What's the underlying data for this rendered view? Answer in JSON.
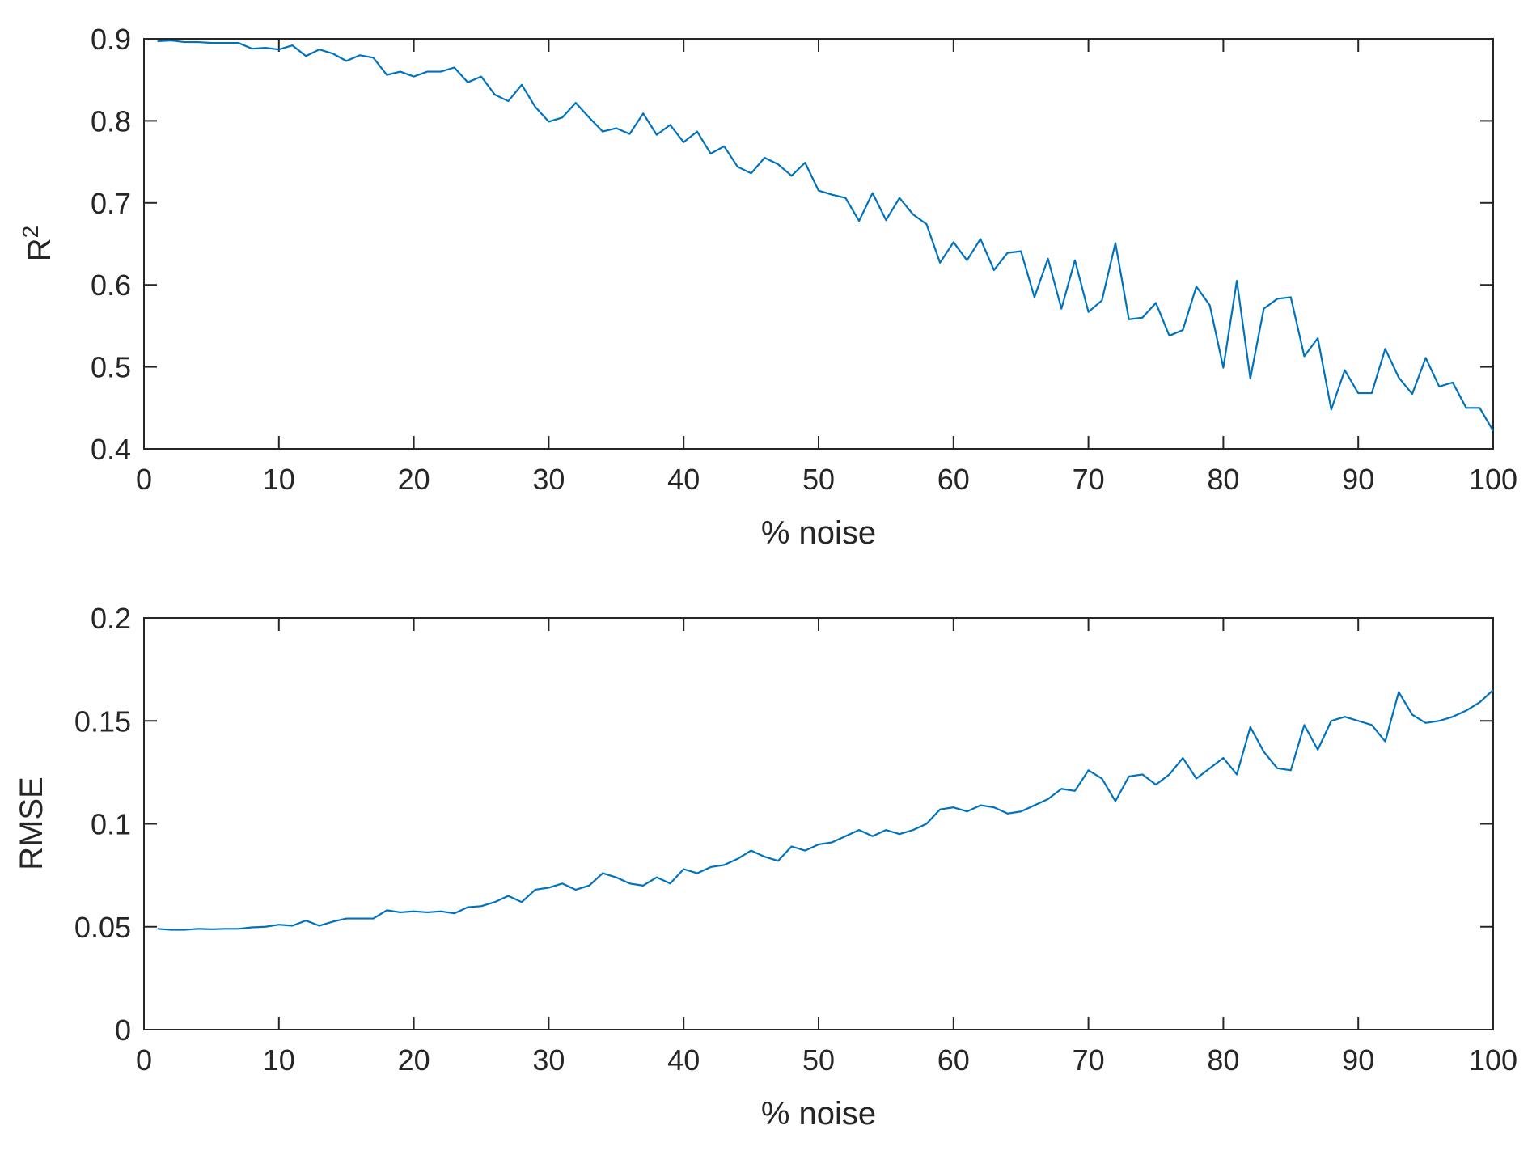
{
  "figure": {
    "background": "#ffffff",
    "line_color": "#0072bd",
    "axis_color": "#262626"
  },
  "chart_data": [
    {
      "type": "line",
      "xlabel": "% noise",
      "ylabel": "R",
      "ylabel_superscript": "2",
      "xlim": [
        0,
        100
      ],
      "ylim": [
        0.4,
        0.9
      ],
      "xticks": [
        0,
        10,
        20,
        30,
        40,
        50,
        60,
        70,
        80,
        90,
        100
      ],
      "yticks": [
        0.4,
        0.5,
        0.6,
        0.7,
        0.8,
        0.9
      ],
      "xtick_labels": [
        "0",
        "10",
        "20",
        "30",
        "40",
        "50",
        "60",
        "70",
        "80",
        "90",
        "100"
      ],
      "ytick_labels": [
        "0.4",
        "0.5",
        "0.6",
        "0.7",
        "0.8",
        "0.9"
      ],
      "grid": false,
      "series": [
        {
          "color": "#0072bd",
          "x": [
            1,
            2,
            3,
            4,
            5,
            6,
            7,
            8,
            9,
            10,
            11,
            12,
            13,
            14,
            15,
            16,
            17,
            18,
            19,
            20,
            21,
            22,
            23,
            24,
            25,
            26,
            27,
            28,
            29,
            30,
            31,
            32,
            33,
            34,
            35,
            36,
            37,
            38,
            39,
            40,
            41,
            42,
            43,
            44,
            45,
            46,
            47,
            48,
            49,
            50,
            51,
            52,
            53,
            54,
            55,
            56,
            57,
            58,
            59,
            60,
            61,
            62,
            63,
            64,
            65,
            66,
            67,
            68,
            69,
            70,
            71,
            72,
            73,
            74,
            75,
            76,
            77,
            78,
            79,
            80,
            81,
            82,
            83,
            84,
            85,
            86,
            87,
            88,
            89,
            90,
            91,
            92,
            93,
            94,
            95,
            96,
            97,
            98,
            99,
            100
          ],
          "values": [
            0.897,
            0.898,
            0.896,
            0.896,
            0.895,
            0.895,
            0.895,
            0.888,
            0.889,
            0.887,
            0.892,
            0.879,
            0.887,
            0.882,
            0.873,
            0.88,
            0.877,
            0.856,
            0.86,
            0.854,
            0.86,
            0.86,
            0.865,
            0.847,
            0.854,
            0.832,
            0.824,
            0.844,
            0.817,
            0.799,
            0.804,
            0.822,
            0.804,
            0.787,
            0.791,
            0.784,
            0.809,
            0.783,
            0.795,
            0.774,
            0.787,
            0.76,
            0.769,
            0.744,
            0.736,
            0.755,
            0.747,
            0.733,
            0.749,
            0.715,
            0.71,
            0.706,
            0.678,
            0.712,
            0.679,
            0.706,
            0.686,
            0.674,
            0.627,
            0.652,
            0.63,
            0.656,
            0.618,
            0.639,
            0.641,
            0.585,
            0.632,
            0.571,
            0.63,
            0.567,
            0.581,
            0.651,
            0.558,
            0.56,
            0.578,
            0.538,
            0.545,
            0.598,
            0.575,
            0.499,
            0.605,
            0.486,
            0.571,
            0.583,
            0.585,
            0.513,
            0.535,
            0.448,
            0.496,
            0.468,
            0.468,
            0.522,
            0.487,
            0.467,
            0.511,
            0.476,
            0.481,
            0.45,
            0.45,
            0.422
          ]
        }
      ]
    },
    {
      "type": "line",
      "xlabel": "% noise",
      "ylabel": "RMSE",
      "xlim": [
        0,
        100
      ],
      "ylim": [
        0,
        0.2
      ],
      "xticks": [
        0,
        10,
        20,
        30,
        40,
        50,
        60,
        70,
        80,
        90,
        100
      ],
      "yticks": [
        0,
        0.05,
        0.1,
        0.15,
        0.2
      ],
      "xtick_labels": [
        "0",
        "10",
        "20",
        "30",
        "40",
        "50",
        "60",
        "70",
        "80",
        "90",
        "100"
      ],
      "ytick_labels": [
        "0",
        "0.05",
        "0.1",
        "0.15",
        "0.2"
      ],
      "grid": false,
      "series": [
        {
          "color": "#0072bd",
          "x": [
            1,
            2,
            3,
            4,
            5,
            6,
            7,
            8,
            9,
            10,
            11,
            12,
            13,
            14,
            15,
            16,
            17,
            18,
            19,
            20,
            21,
            22,
            23,
            24,
            25,
            26,
            27,
            28,
            29,
            30,
            31,
            32,
            33,
            34,
            35,
            36,
            37,
            38,
            39,
            40,
            41,
            42,
            43,
            44,
            45,
            46,
            47,
            48,
            49,
            50,
            51,
            52,
            53,
            54,
            55,
            56,
            57,
            58,
            59,
            60,
            61,
            62,
            63,
            64,
            65,
            66,
            67,
            68,
            69,
            70,
            71,
            72,
            73,
            74,
            75,
            76,
            77,
            78,
            79,
            80,
            81,
            82,
            83,
            84,
            85,
            86,
            87,
            88,
            89,
            90,
            91,
            92,
            93,
            94,
            95,
            96,
            97,
            98,
            99,
            100
          ],
          "values": [
            0.049,
            0.0485,
            0.0485,
            0.049,
            0.0488,
            0.049,
            0.049,
            0.0497,
            0.05,
            0.051,
            0.0505,
            0.053,
            0.0505,
            0.0525,
            0.054,
            0.054,
            0.054,
            0.058,
            0.057,
            0.0575,
            0.057,
            0.0575,
            0.0565,
            0.0595,
            0.06,
            0.062,
            0.065,
            0.062,
            0.068,
            0.069,
            0.071,
            0.068,
            0.07,
            0.076,
            0.074,
            0.071,
            0.07,
            0.074,
            0.071,
            0.078,
            0.076,
            0.079,
            0.08,
            0.083,
            0.087,
            0.084,
            0.082,
            0.089,
            0.087,
            0.09,
            0.091,
            0.094,
            0.097,
            0.094,
            0.097,
            0.095,
            0.097,
            0.1,
            0.107,
            0.108,
            0.106,
            0.109,
            0.108,
            0.105,
            0.106,
            0.109,
            0.112,
            0.117,
            0.116,
            0.126,
            0.122,
            0.111,
            0.123,
            0.124,
            0.119,
            0.124,
            0.132,
            0.122,
            0.127,
            0.132,
            0.124,
            0.147,
            0.135,
            0.127,
            0.126,
            0.148,
            0.136,
            0.15,
            0.152,
            0.15,
            0.148,
            0.14,
            0.164,
            0.153,
            0.149,
            0.15,
            0.152,
            0.155,
            0.159,
            0.165
          ]
        }
      ]
    }
  ]
}
